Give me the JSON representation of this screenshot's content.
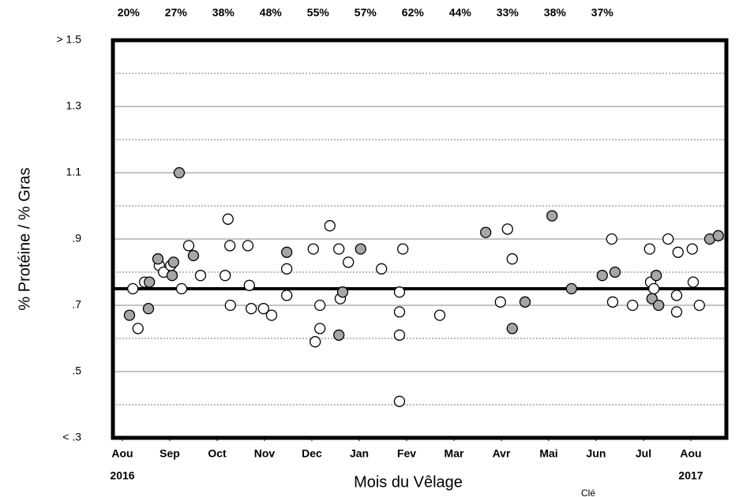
{
  "chart_data": {
    "type": "scatter",
    "xlabel": "Mois du Vêlage",
    "ylabel": "% Protéine / % Gras",
    "top_labels": [
      "20%",
      "27%",
      "38%",
      "48%",
      "55%",
      "57%",
      "62%",
      "44%",
      "33%",
      "38%",
      "37%"
    ],
    "key_label": "Clé",
    "xlim": [
      -0.2,
      12.75
    ],
    "xticks": [
      {
        "value": 0,
        "label": "Aou"
      },
      {
        "value": 1,
        "label": "Sep"
      },
      {
        "value": 2,
        "label": "Oct"
      },
      {
        "value": 3,
        "label": "Nov"
      },
      {
        "value": 4,
        "label": "Dec"
      },
      {
        "value": 5,
        "label": "Jan"
      },
      {
        "value": 6,
        "label": "Fev"
      },
      {
        "value": 7,
        "label": "Mar"
      },
      {
        "value": 8,
        "label": "Avr"
      },
      {
        "value": 9,
        "label": "Mai"
      },
      {
        "value": 10,
        "label": "Jun"
      },
      {
        "value": 11,
        "label": "Jul"
      },
      {
        "value": 12,
        "label": "Aou"
      }
    ],
    "year_labels": [
      {
        "value": 0,
        "label": "2016"
      },
      {
        "value": 12,
        "label": "2017"
      }
    ],
    "ylim": [
      0.3,
      1.5
    ],
    "yticks": [
      {
        "value": 0.3,
        "label": "< .3"
      },
      {
        "value": 0.5,
        "label": ".5"
      },
      {
        "value": 0.7,
        "label": ".7"
      },
      {
        "value": 0.9,
        "label": ".9"
      },
      1.1,
      1.3,
      {
        "value": 1.5,
        "label": "> 1.5"
      }
    ],
    "yminorticks": [
      0.4,
      0.6,
      0.8,
      1.0,
      1.2,
      1.4
    ],
    "grid": true,
    "reference_line": 0.75,
    "series": [
      {
        "color": "#ffffff",
        "x": [
          0.22,
          0.33,
          0.47,
          0.78,
          0.87,
          1.02,
          1.25,
          1.4,
          1.65,
          2.23,
          2.27,
          2.17,
          2.28,
          2.65,
          2.68,
          2.72,
          2.98,
          3.15,
          3.47,
          3.47,
          4.03,
          4.07,
          4.17,
          4.17,
          4.38,
          4.57,
          4.6,
          4.77,
          5.47,
          5.85,
          5.85,
          5.92,
          5.85,
          5.85,
          6.7,
          7.98,
          8.13,
          8.23,
          10.33,
          10.35,
          10.77,
          11.13,
          11.15,
          11.22,
          11.52,
          11.7,
          11.7,
          11.73,
          12.03,
          12.05,
          12.18
        ],
        "values": [
          0.75,
          0.63,
          0.77,
          0.82,
          0.8,
          0.82,
          0.75,
          0.88,
          0.79,
          0.96,
          0.88,
          0.79,
          0.7,
          0.88,
          0.76,
          0.69,
          0.69,
          0.67,
          0.81,
          0.73,
          0.87,
          0.59,
          0.63,
          0.7,
          0.94,
          0.87,
          0.72,
          0.83,
          0.81,
          0.74,
          0.68,
          0.87,
          0.61,
          0.41,
          0.67,
          0.71,
          0.93,
          0.84,
          0.9,
          0.71,
          0.7,
          0.87,
          0.77,
          0.75,
          0.9,
          0.73,
          0.68,
          0.86,
          0.87,
          0.77,
          0.7
        ]
      },
      {
        "color": "#a6a6a6",
        "x": [
          0.15,
          0.55,
          0.57,
          0.75,
          1.08,
          1.05,
          1.2,
          1.5,
          3.47,
          4.57,
          4.65,
          5.03,
          7.67,
          8.23,
          8.5,
          9.07,
          9.48,
          10.13,
          10.4,
          11.18,
          11.27,
          11.32,
          12.4,
          12.58
        ],
        "values": [
          0.67,
          0.69,
          0.77,
          0.84,
          0.83,
          0.79,
          1.1,
          0.85,
          0.86,
          0.61,
          0.74,
          0.87,
          0.92,
          0.63,
          0.71,
          0.97,
          0.75,
          0.79,
          0.8,
          0.72,
          0.79,
          0.7,
          0.9,
          0.91
        ]
      }
    ]
  }
}
